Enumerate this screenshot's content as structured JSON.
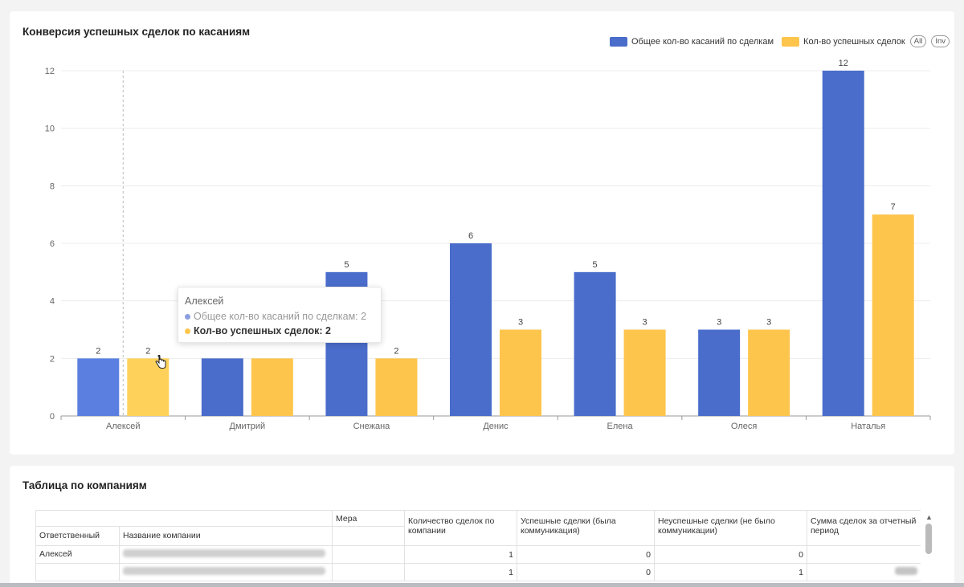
{
  "chart_card": {
    "title": "Конверсия успешных сделок по касаниям",
    "legend": {
      "items": [
        {
          "label": "Общее кол-во касаний по сделкам",
          "color": "#4a6dcb"
        },
        {
          "label": "Кол-во успешных сделок",
          "color": "#fec54c"
        }
      ],
      "all_label": "All",
      "inv_label": "Inv"
    },
    "tooltip": {
      "title": "Алексей",
      "row1": "Общее кол-во касаний по сделкам: 2",
      "row2": "Кол-во успешных сделок: 2"
    }
  },
  "chart_data": {
    "type": "bar",
    "title": "Конверсия успешных сделок по касаниям",
    "categories": [
      "Алексей",
      "Дмитрий",
      "Снежана",
      "Денис",
      "Елена",
      "Олеся",
      "Наталья"
    ],
    "series": [
      {
        "name": "Общее кол-во касаний по сделкам",
        "color": "#4a6dcb",
        "values": [
          2,
          2,
          5,
          6,
          5,
          3,
          12
        ]
      },
      {
        "name": "Кол-во успешных сделок",
        "color": "#fec54c",
        "values": [
          2,
          2,
          2,
          3,
          3,
          3,
          7
        ]
      }
    ],
    "data_labels": [
      [
        "2",
        "",
        "5",
        "6",
        "5",
        "3",
        "12"
      ],
      [
        "2",
        "",
        "2",
        "3",
        "3",
        "3",
        "7"
      ]
    ],
    "ylim": [
      0,
      12
    ],
    "yticks": [
      0,
      2,
      4,
      6,
      8,
      10,
      12
    ],
    "grid": true,
    "legend_position": "top-right",
    "hovered_category": "Алексей"
  },
  "table_card": {
    "title": "Таблица по компаниям",
    "measure_label": "Мера",
    "headers": {
      "responsible": "Ответственный",
      "company": "Название компании",
      "deals_count": "Количество сделок по компании",
      "successful": "Успешные сделки (была коммуникация)",
      "unsuccessful": "Неуспешные сделки (не было коммуникации)",
      "sum": "Сумма сделок за отчетный период"
    },
    "rows": [
      {
        "responsible": "Алексей",
        "deals_count": "1",
        "successful": "0",
        "unsuccessful": "0"
      },
      {
        "responsible": "",
        "deals_count": "1",
        "successful": "0",
        "unsuccessful": "1"
      }
    ]
  }
}
